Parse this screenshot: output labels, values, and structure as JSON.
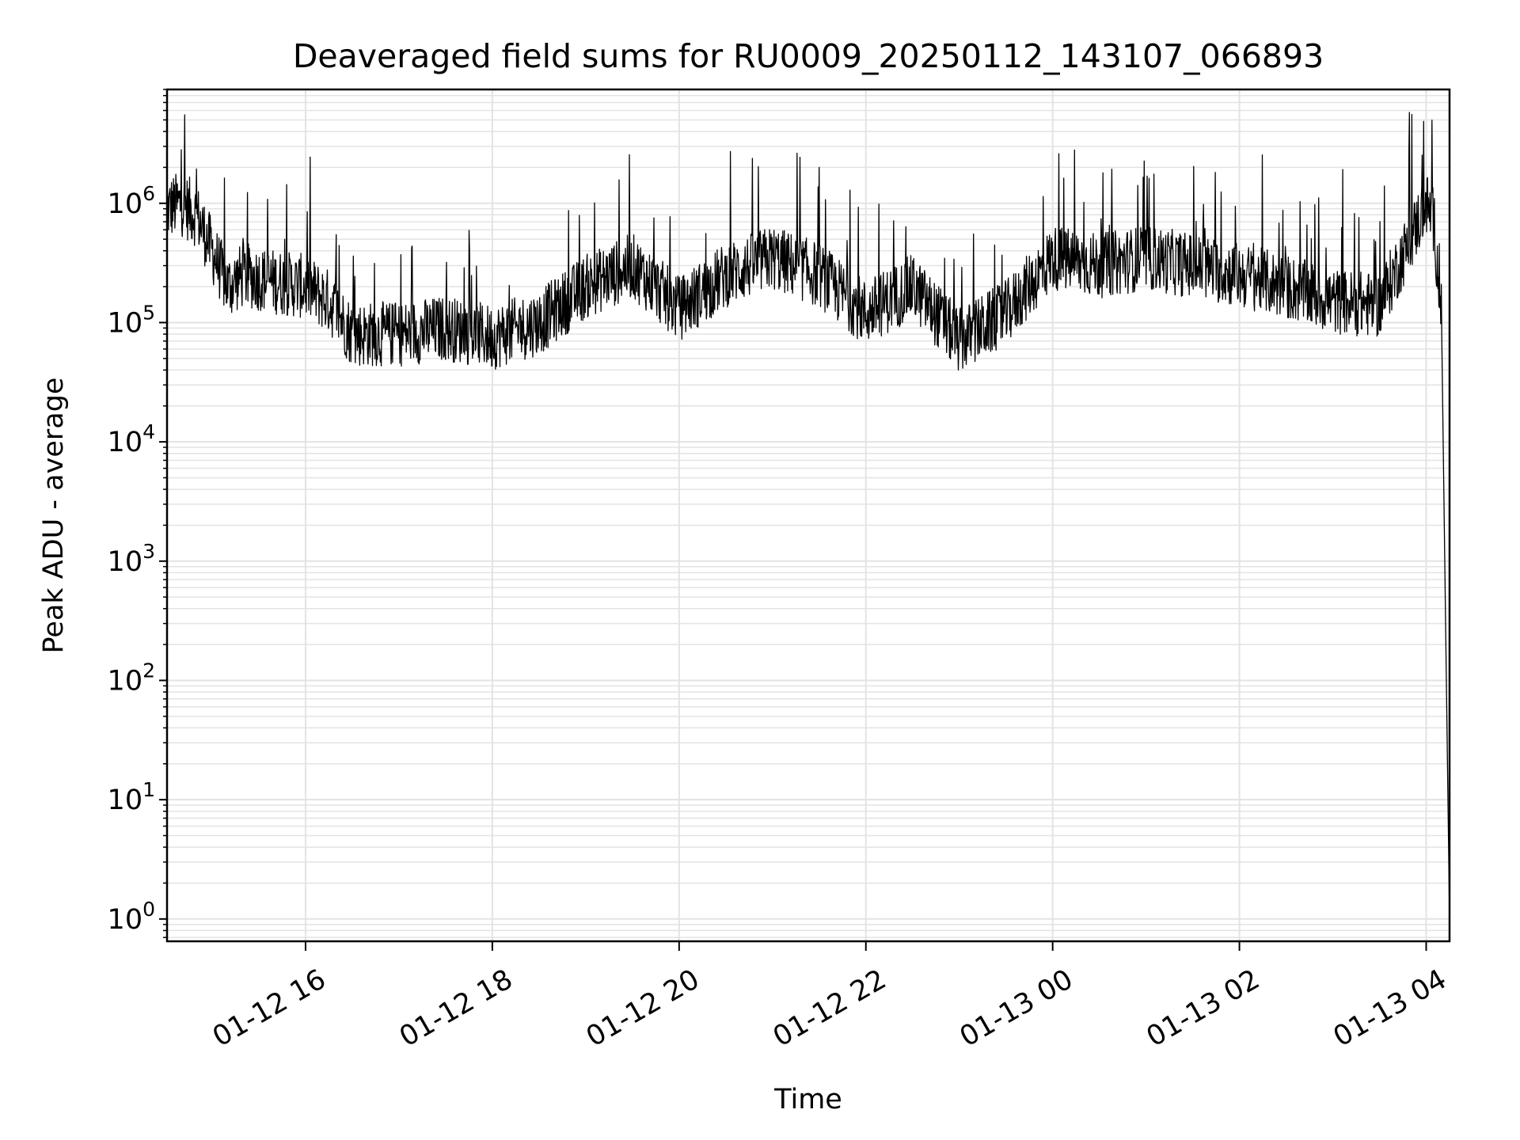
{
  "chart_data": {
    "type": "line",
    "title": "Deaveraged field sums for RU0009_20250112_143107_066893",
    "xlabel": "Time",
    "ylabel": "Peak ADU - average",
    "yscale": "log",
    "ylim": [
      0.65,
      9000000
    ],
    "xlim": [
      "2025-01-12 14:31",
      "2025-01-13 04:15"
    ],
    "grid": true,
    "x_ticks": [
      "01-12 16",
      "01-12 18",
      "01-12 20",
      "01-12 22",
      "01-13 00",
      "01-13 02",
      "01-13 04"
    ],
    "y_ticks": [
      {
        "base": "10",
        "exp": "0"
      },
      {
        "base": "10",
        "exp": "1"
      },
      {
        "base": "10",
        "exp": "2"
      },
      {
        "base": "10",
        "exp": "3"
      },
      {
        "base": "10",
        "exp": "4"
      },
      {
        "base": "10",
        "exp": "5"
      },
      {
        "base": "10",
        "exp": "6"
      }
    ],
    "colors": {
      "line": "#000000",
      "grid": "#e3e3e3"
    },
    "series": [
      {
        "x": [
          "2025-01-12 14:31",
          "2025-01-12 14:40",
          "2025-01-12 14:50",
          "2025-01-12 15:00",
          "2025-01-12 15:10",
          "2025-01-12 15:20",
          "2025-01-12 15:40",
          "2025-01-12 16:00",
          "2025-01-12 16:15",
          "2025-01-12 16:30",
          "2025-01-12 17:00",
          "2025-01-12 17:30",
          "2025-01-12 18:00",
          "2025-01-12 18:30",
          "2025-01-12 19:00",
          "2025-01-12 19:30",
          "2025-01-12 20:00",
          "2025-01-12 20:30",
          "2025-01-12 21:00",
          "2025-01-12 21:30",
          "2025-01-12 22:00",
          "2025-01-12 22:30",
          "2025-01-12 23:00",
          "2025-01-12 23:30",
          "2025-01-13 00:00",
          "2025-01-13 00:30",
          "2025-01-13 01:00",
          "2025-01-13 01:30",
          "2025-01-13 02:00",
          "2025-01-13 02:30",
          "2025-01-13 03:00",
          "2025-01-13 03:30",
          "2025-01-13 03:50",
          "2025-01-13 04:00",
          "2025-01-13 04:05",
          "2025-01-13 04:10",
          "2025-01-13 04:15"
        ],
        "y": [
          900000,
          1000000,
          800000,
          400000,
          200000,
          250000,
          220000,
          200000,
          150000,
          80000,
          80000,
          90000,
          75000,
          100000,
          200000,
          300000,
          130000,
          250000,
          350000,
          250000,
          120000,
          200000,
          70000,
          120000,
          350000,
          300000,
          350000,
          300000,
          250000,
          200000,
          150000,
          140000,
          500000,
          1000000,
          700000,
          100000,
          1
        ]
      }
    ]
  }
}
